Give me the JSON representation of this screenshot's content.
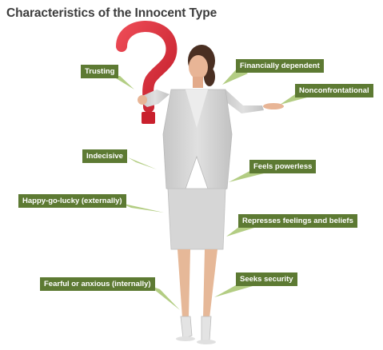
{
  "title": "Characteristics of the Innocent Type",
  "colors": {
    "label_bg": "#5d7a33",
    "pointer": "#a6c56e",
    "question_mark": "#dc2e3a",
    "suit": "#d2d2d2"
  },
  "labels": [
    {
      "id": "trusting",
      "text": "Trusting"
    },
    {
      "id": "financially-dependent",
      "text": "Financially dependent"
    },
    {
      "id": "nonconfrontational",
      "text": "Nonconfrontational"
    },
    {
      "id": "indecisive",
      "text": "Indecisive"
    },
    {
      "id": "feels-powerless",
      "text": "Feels powerless"
    },
    {
      "id": "happy-go-lucky",
      "text": "Happy-go-lucky (externally)"
    },
    {
      "id": "represses-feelings",
      "text": "Represses feelings and beliefs"
    },
    {
      "id": "fearful-or-anxious",
      "text": "Fearful or anxious (internally)"
    },
    {
      "id": "seeks-security",
      "text": "Seeks security"
    }
  ]
}
